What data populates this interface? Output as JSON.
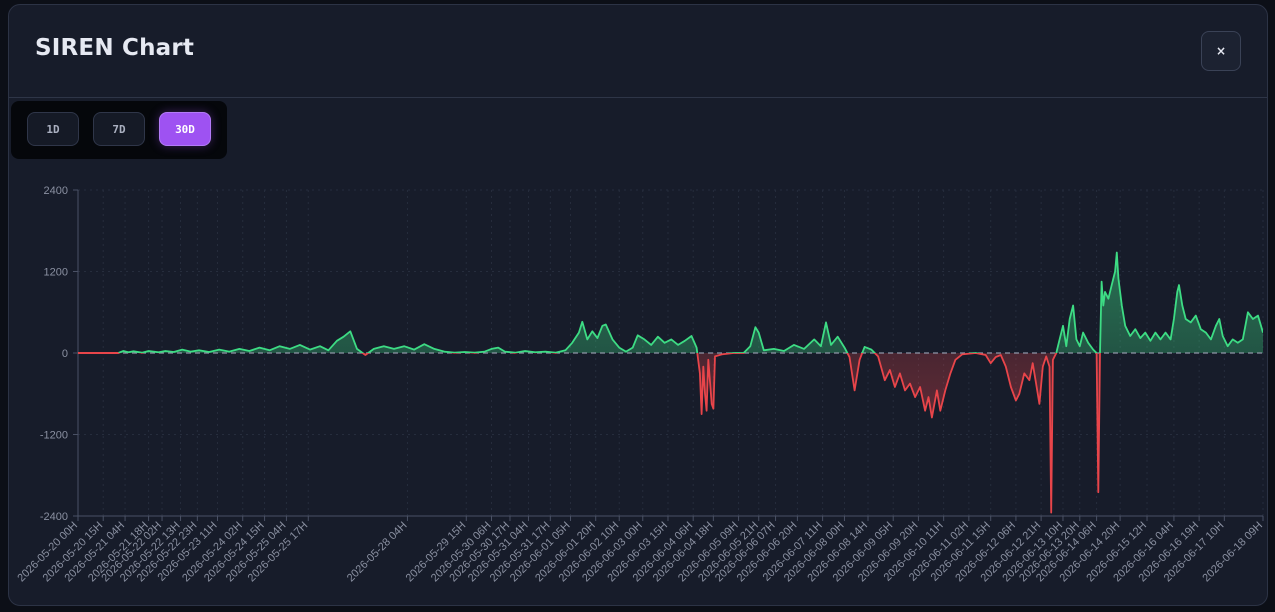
{
  "title": "SIREN Chart",
  "close_label": "×",
  "range_buttons": [
    {
      "label": "1D",
      "active": false
    },
    {
      "label": "7D",
      "active": false
    },
    {
      "label": "30D",
      "active": true
    }
  ],
  "colors": {
    "positive": "#3ddc84",
    "negative": "#e8454a",
    "active_button": "#9e52f2",
    "background": "#171c2a"
  },
  "chart_data": {
    "type": "area",
    "title": "",
    "xlabel": "",
    "ylabel": "",
    "ylim": [
      -2400,
      2400
    ],
    "yticks": [
      2400,
      1200,
      0,
      -1200,
      -2400
    ],
    "xlim": [
      "2026-05-20 00H",
      "2026-06-18 09H"
    ],
    "grid": true,
    "zero_line": "dashed",
    "xticks": [
      "2026-05-20 00H",
      "2026-05-20 15H",
      "2026-05-21 04H",
      "2026-05-21 18H",
      "2026-05-22 02H",
      "2026-05-22 13H",
      "2026-05-22 23H",
      "2026-05-23 11H",
      "2026-05-24 02H",
      "2026-05-24 15H",
      "2026-05-25 04H",
      "2026-05-25 17H",
      "2026-05-28 04H",
      "2026-05-29 15H",
      "2026-05-30 06H",
      "2026-05-30 17H",
      "2026-05-31 04H",
      "2026-05-31 17H",
      "2026-06-01 05H",
      "2026-06-01 20H",
      "2026-06-02 10H",
      "2026-06-03 00H",
      "2026-06-03 15H",
      "2026-06-04 06H",
      "2026-06-04 18H",
      "2026-06-05 09H",
      "2026-06-05 21H",
      "2026-06-06 07H",
      "2026-06-06 20H",
      "2026-06-07 11H",
      "2026-06-08 00H",
      "2026-06-08 14H",
      "2026-06-09 05H",
      "2026-06-09 20H",
      "2026-06-10 11H",
      "2026-06-11 02H",
      "2026-06-11 15H",
      "2026-06-12 06H",
      "2026-06-12 21H",
      "2026-06-13 10H",
      "2026-06-13 20H",
      "2026-06-14 06H",
      "2026-06-14 20H",
      "2026-06-15 12H",
      "2026-06-16 04H",
      "2026-06-16 19H",
      "2026-06-17 10H",
      "2026-06-18 09H"
    ],
    "series": [
      {
        "points": [
          [
            "2026-05-20 00H",
            0
          ],
          [
            "2026-05-21 00H",
            0
          ],
          [
            "2026-05-21 03H",
            30
          ],
          [
            "2026-05-21 06H",
            10
          ],
          [
            "2026-05-21 09H",
            25
          ],
          [
            "2026-05-21 14H",
            5
          ],
          [
            "2026-05-21 18H",
            30
          ],
          [
            "2026-05-22 00H",
            10
          ],
          [
            "2026-05-22 04H",
            30
          ],
          [
            "2026-05-22 09H",
            15
          ],
          [
            "2026-05-22 14H",
            50
          ],
          [
            "2026-05-22 19H",
            20
          ],
          [
            "2026-05-23 00H",
            40
          ],
          [
            "2026-05-23 06H",
            15
          ],
          [
            "2026-05-23 12H",
            50
          ],
          [
            "2026-05-23 18H",
            20
          ],
          [
            "2026-05-24 00H",
            60
          ],
          [
            "2026-05-24 06H",
            30
          ],
          [
            "2026-05-24 12H",
            80
          ],
          [
            "2026-05-24 18H",
            40
          ],
          [
            "2026-05-25 00H",
            100
          ],
          [
            "2026-05-25 06H",
            60
          ],
          [
            "2026-05-25 12H",
            120
          ],
          [
            "2026-05-25 18H",
            50
          ],
          [
            "2026-05-26 00H",
            100
          ],
          [
            "2026-05-26 05H",
            40
          ],
          [
            "2026-05-26 10H",
            180
          ],
          [
            "2026-05-26 14H",
            240
          ],
          [
            "2026-05-26 18H",
            320
          ],
          [
            "2026-05-26 22H",
            60
          ],
          [
            "2026-05-27 03H",
            -30
          ],
          [
            "2026-05-27 08H",
            60
          ],
          [
            "2026-05-27 14H",
            100
          ],
          [
            "2026-05-27 20H",
            60
          ],
          [
            "2026-05-28 02H",
            100
          ],
          [
            "2026-05-28 08H",
            50
          ],
          [
            "2026-05-28 14H",
            130
          ],
          [
            "2026-05-28 20H",
            60
          ],
          [
            "2026-05-29 02H",
            20
          ],
          [
            "2026-05-29 08H",
            5
          ],
          [
            "2026-05-29 14H",
            15
          ],
          [
            "2026-05-29 20H",
            5
          ],
          [
            "2026-05-30 02H",
            20
          ],
          [
            "2026-05-30 06H",
            60
          ],
          [
            "2026-05-30 10H",
            80
          ],
          [
            "2026-05-30 14H",
            20
          ],
          [
            "2026-05-30 20H",
            5
          ],
          [
            "2026-05-31 02H",
            30
          ],
          [
            "2026-05-31 08H",
            10
          ],
          [
            "2026-05-31 14H",
            20
          ],
          [
            "2026-05-31 20H",
            5
          ],
          [
            "2026-06-01 02H",
            40
          ],
          [
            "2026-06-01 06H",
            150
          ],
          [
            "2026-06-01 10H",
            300
          ],
          [
            "2026-06-01 12H",
            460
          ],
          [
            "2026-06-01 15H",
            200
          ],
          [
            "2026-06-01 18H",
            320
          ],
          [
            "2026-06-01 21H",
            220
          ],
          [
            "2026-06-02 00H",
            400
          ],
          [
            "2026-06-02 02H",
            420
          ],
          [
            "2026-06-02 06H",
            200
          ],
          [
            "2026-06-02 10H",
            80
          ],
          [
            "2026-06-02 14H",
            20
          ],
          [
            "2026-06-02 18H",
            80
          ],
          [
            "2026-06-02 21H",
            260
          ],
          [
            "2026-06-03 01H",
            200
          ],
          [
            "2026-06-03 05H",
            120
          ],
          [
            "2026-06-03 09H",
            240
          ],
          [
            "2026-06-03 13H",
            150
          ],
          [
            "2026-06-03 17H",
            200
          ],
          [
            "2026-06-03 21H",
            120
          ],
          [
            "2026-06-04 01H",
            180
          ],
          [
            "2026-06-04 05H",
            250
          ],
          [
            "2026-06-04 08H",
            80
          ],
          [
            "2026-06-04 10H",
            -300
          ],
          [
            "2026-06-04 11H",
            -900
          ],
          [
            "2026-06-04 12H",
            -200
          ],
          [
            "2026-06-04 13H",
            -600
          ],
          [
            "2026-06-04 14H",
            -850
          ],
          [
            "2026-06-04 15H",
            -100
          ],
          [
            "2026-06-04 17H",
            -750
          ],
          [
            "2026-06-04 18H",
            -820
          ],
          [
            "2026-06-04 19H",
            -50
          ],
          [
            "2026-06-04 23H",
            -20
          ],
          [
            "2026-06-05 06H",
            0
          ],
          [
            "2026-06-05 12H",
            0
          ],
          [
            "2026-06-05 16H",
            100
          ],
          [
            "2026-06-05 19H",
            380
          ],
          [
            "2026-06-05 21H",
            300
          ],
          [
            "2026-06-06 00H",
            40
          ],
          [
            "2026-06-06 06H",
            60
          ],
          [
            "2026-06-06 12H",
            30
          ],
          [
            "2026-06-06 18H",
            120
          ],
          [
            "2026-06-07 00H",
            60
          ],
          [
            "2026-06-07 06H",
            200
          ],
          [
            "2026-06-07 10H",
            100
          ],
          [
            "2026-06-07 13H",
            450
          ],
          [
            "2026-06-07 16H",
            120
          ],
          [
            "2026-06-07 20H",
            240
          ],
          [
            "2026-06-08 00H",
            80
          ],
          [
            "2026-06-08 03H",
            -60
          ],
          [
            "2026-06-08 06H",
            -550
          ],
          [
            "2026-06-08 09H",
            -100
          ],
          [
            "2026-06-08 12H",
            90
          ],
          [
            "2026-06-08 16H",
            50
          ],
          [
            "2026-06-08 20H",
            -50
          ],
          [
            "2026-06-09 00H",
            -400
          ],
          [
            "2026-06-09 03H",
            -250
          ],
          [
            "2026-06-09 06H",
            -500
          ],
          [
            "2026-06-09 09H",
            -300
          ],
          [
            "2026-06-09 12H",
            -550
          ],
          [
            "2026-06-09 15H",
            -450
          ],
          [
            "2026-06-09 18H",
            -650
          ],
          [
            "2026-06-09 21H",
            -500
          ],
          [
            "2026-06-10 00H",
            -850
          ],
          [
            "2026-06-10 02H",
            -650
          ],
          [
            "2026-06-10 04H",
            -950
          ],
          [
            "2026-06-10 07H",
            -550
          ],
          [
            "2026-06-10 09H",
            -850
          ],
          [
            "2026-06-10 12H",
            -550
          ],
          [
            "2026-06-10 15H",
            -300
          ],
          [
            "2026-06-10 18H",
            -100
          ],
          [
            "2026-06-10 22H",
            -20
          ],
          [
            "2026-06-11 06H",
            0
          ],
          [
            "2026-06-11 12H",
            -30
          ],
          [
            "2026-06-11 15H",
            -150
          ],
          [
            "2026-06-11 18H",
            -60
          ],
          [
            "2026-06-11 21H",
            -30
          ],
          [
            "2026-06-12 00H",
            -200
          ],
          [
            "2026-06-12 03H",
            -500
          ],
          [
            "2026-06-12 06H",
            -700
          ],
          [
            "2026-06-12 08H",
            -600
          ],
          [
            "2026-06-12 11H",
            -300
          ],
          [
            "2026-06-12 14H",
            -400
          ],
          [
            "2026-06-12 16H",
            -150
          ],
          [
            "2026-06-12 18H",
            -450
          ],
          [
            "2026-06-12 20H",
            -750
          ],
          [
            "2026-06-12 22H",
            -200
          ],
          [
            "2026-06-13 00H",
            -50
          ],
          [
            "2026-06-13 02H",
            -200
          ],
          [
            "2026-06-13 03H",
            -2350
          ],
          [
            "2026-06-13 04H",
            -100
          ],
          [
            "2026-06-13 06H",
            0
          ],
          [
            "2026-06-13 08H",
            200
          ],
          [
            "2026-06-13 10H",
            400
          ],
          [
            "2026-06-13 12H",
            100
          ],
          [
            "2026-06-13 14H",
            500
          ],
          [
            "2026-06-13 16H",
            700
          ],
          [
            "2026-06-13 18H",
            200
          ],
          [
            "2026-06-13 20H",
            100
          ],
          [
            "2026-06-13 22H",
            300
          ],
          [
            "2026-06-14 01H",
            150
          ],
          [
            "2026-06-14 04H",
            50
          ],
          [
            "2026-06-14 06H",
            0
          ],
          [
            "2026-06-14 07H",
            -2050
          ],
          [
            "2026-06-14 08H",
            0
          ],
          [
            "2026-06-14 09H",
            1050
          ],
          [
            "2026-06-14 10H",
            700
          ],
          [
            "2026-06-14 11H",
            900
          ],
          [
            "2026-06-14 13H",
            800
          ],
          [
            "2026-06-14 15H",
            1000
          ],
          [
            "2026-06-14 17H",
            1200
          ],
          [
            "2026-06-14 18H",
            1480
          ],
          [
            "2026-06-14 19H",
            1100
          ],
          [
            "2026-06-14 21H",
            700
          ],
          [
            "2026-06-14 23H",
            400
          ],
          [
            "2026-06-15 02H",
            250
          ],
          [
            "2026-06-15 05H",
            350
          ],
          [
            "2026-06-15 08H",
            220
          ],
          [
            "2026-06-15 11H",
            300
          ],
          [
            "2026-06-15 14H",
            180
          ],
          [
            "2026-06-15 17H",
            300
          ],
          [
            "2026-06-15 20H",
            200
          ],
          [
            "2026-06-15 23H",
            300
          ],
          [
            "2026-06-16 02H",
            200
          ],
          [
            "2026-06-16 04H",
            500
          ],
          [
            "2026-06-16 06H",
            900
          ],
          [
            "2026-06-16 07H",
            1000
          ],
          [
            "2026-06-16 09H",
            700
          ],
          [
            "2026-06-16 11H",
            500
          ],
          [
            "2026-06-16 14H",
            450
          ],
          [
            "2026-06-16 17H",
            550
          ],
          [
            "2026-06-16 20H",
            350
          ],
          [
            "2026-06-16 23H",
            300
          ],
          [
            "2026-06-17 02H",
            200
          ],
          [
            "2026-06-17 05H",
            400
          ],
          [
            "2026-06-17 07H",
            500
          ],
          [
            "2026-06-17 09H",
            250
          ],
          [
            "2026-06-17 12H",
            100
          ],
          [
            "2026-06-17 15H",
            200
          ],
          [
            "2026-06-17 18H",
            150
          ],
          [
            "2026-06-17 21H",
            200
          ],
          [
            "2026-06-18 00H",
            600
          ],
          [
            "2026-06-18 03H",
            500
          ],
          [
            "2026-06-18 06H",
            550
          ],
          [
            "2026-06-18 09H",
            300
          ]
        ]
      }
    ]
  }
}
